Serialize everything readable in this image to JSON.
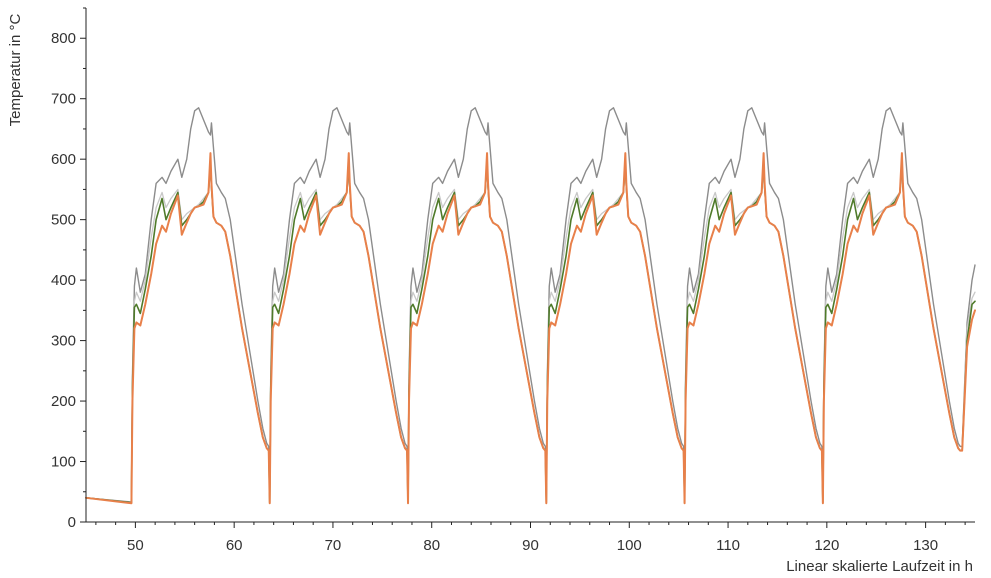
{
  "chart_data": {
    "type": "line",
    "xlabel": "Linear skalierte Laufzeit in h",
    "ylabel": "Temperatur in °C",
    "xlim": [
      45,
      135
    ],
    "ylim": [
      0,
      850
    ],
    "xticks": [
      50,
      60,
      70,
      80,
      90,
      100,
      110,
      120,
      130
    ],
    "yticks": [
      0,
      100,
      200,
      300,
      400,
      500,
      600,
      700,
      800
    ],
    "grid": false,
    "legend": "none",
    "cycle_period_h": 14,
    "series": [
      {
        "color": "#8c8c8c",
        "width": 1.4,
        "initial": [
          [
            45,
            40
          ],
          [
            49.6,
            33
          ]
        ],
        "cycle_start_h": 49.6,
        "cycle": [
          [
            0,
            33
          ],
          [
            0.1,
            240
          ],
          [
            0.3,
            390
          ],
          [
            0.5,
            420
          ],
          [
            0.9,
            380
          ],
          [
            1.4,
            410
          ],
          [
            2.0,
            500
          ],
          [
            2.5,
            560
          ],
          [
            3.1,
            570
          ],
          [
            3.5,
            560
          ],
          [
            4.0,
            580
          ],
          [
            4.7,
            600
          ],
          [
            5.1,
            570
          ],
          [
            5.6,
            600
          ],
          [
            6.0,
            650
          ],
          [
            6.4,
            680
          ],
          [
            6.8,
            685
          ],
          [
            7.3,
            665
          ],
          [
            7.8,
            645
          ],
          [
            8.0,
            640
          ],
          [
            8.1,
            660
          ],
          [
            8.3,
            620
          ],
          [
            8.6,
            560
          ],
          [
            9.1,
            545
          ],
          [
            9.5,
            535
          ],
          [
            10.0,
            500
          ],
          [
            10.6,
            430
          ],
          [
            11.2,
            360
          ],
          [
            12.0,
            280
          ],
          [
            12.8,
            200
          ],
          [
            13.3,
            155
          ],
          [
            13.7,
            130
          ],
          [
            13.9,
            125
          ]
        ],
        "final": [
          [
            133.7,
            125
          ],
          [
            134.2,
            330
          ],
          [
            134.7,
            400
          ],
          [
            135,
            425
          ]
        ]
      },
      {
        "color": "#c8c8c8",
        "width": 1.3,
        "initial": [
          [
            45,
            40
          ],
          [
            49.6,
            32
          ]
        ],
        "cycle_start_h": 49.6,
        "cycle": [
          [
            0,
            32
          ],
          [
            0.1,
            230
          ],
          [
            0.3,
            365
          ],
          [
            0.5,
            380
          ],
          [
            0.9,
            365
          ],
          [
            1.4,
            400
          ],
          [
            2.0,
            470
          ],
          [
            2.5,
            520
          ],
          [
            3.1,
            545
          ],
          [
            3.5,
            520
          ],
          [
            4.0,
            535
          ],
          [
            4.7,
            550
          ],
          [
            5.1,
            500
          ],
          [
            5.6,
            510
          ],
          [
            6.0,
            515
          ],
          [
            6.4,
            520
          ],
          [
            6.8,
            525
          ],
          [
            7.3,
            535
          ],
          [
            7.8,
            545
          ],
          [
            8.0,
            580
          ],
          [
            8.1,
            550
          ],
          [
            8.3,
            505
          ],
          [
            8.6,
            495
          ],
          [
            9.1,
            490
          ],
          [
            9.5,
            480
          ],
          [
            10.0,
            440
          ],
          [
            10.6,
            380
          ],
          [
            11.2,
            320
          ],
          [
            12.0,
            250
          ],
          [
            12.8,
            180
          ],
          [
            13.3,
            140
          ],
          [
            13.7,
            122
          ],
          [
            13.9,
            118
          ]
        ],
        "final": [
          [
            133.7,
            118
          ],
          [
            134.2,
            320
          ],
          [
            134.7,
            370
          ],
          [
            135,
            380
          ]
        ]
      },
      {
        "color": "#4f7a2a",
        "width": 1.6,
        "initial": [
          [
            45,
            40
          ],
          [
            49.6,
            32
          ]
        ],
        "cycle_start_h": 49.6,
        "cycle": [
          [
            0,
            32
          ],
          [
            0.1,
            220
          ],
          [
            0.3,
            355
          ],
          [
            0.5,
            360
          ],
          [
            0.9,
            345
          ],
          [
            1.4,
            385
          ],
          [
            2.0,
            440
          ],
          [
            2.5,
            500
          ],
          [
            3.1,
            535
          ],
          [
            3.5,
            500
          ],
          [
            4.0,
            520
          ],
          [
            4.7,
            545
          ],
          [
            5.1,
            490
          ],
          [
            5.6,
            500
          ],
          [
            6.0,
            510
          ],
          [
            6.4,
            520
          ],
          [
            6.8,
            522
          ],
          [
            7.3,
            530
          ],
          [
            7.8,
            545
          ],
          [
            8.0,
            595
          ],
          [
            8.1,
            555
          ],
          [
            8.3,
            505
          ],
          [
            8.6,
            495
          ],
          [
            9.1,
            490
          ],
          [
            9.5,
            480
          ],
          [
            10.0,
            440
          ],
          [
            10.6,
            380
          ],
          [
            11.2,
            320
          ],
          [
            12.0,
            250
          ],
          [
            12.8,
            180
          ],
          [
            13.3,
            140
          ],
          [
            13.7,
            122
          ],
          [
            13.9,
            118
          ]
        ],
        "final": [
          [
            133.7,
            118
          ],
          [
            134.2,
            300
          ],
          [
            134.7,
            360
          ],
          [
            135,
            365
          ]
        ]
      },
      {
        "color": "#e8804a",
        "width": 2.0,
        "initial": [
          [
            45,
            40
          ],
          [
            49.6,
            31
          ]
        ],
        "cycle_start_h": 49.6,
        "cycle": [
          [
            0,
            31
          ],
          [
            0.1,
            200
          ],
          [
            0.3,
            320
          ],
          [
            0.5,
            330
          ],
          [
            0.9,
            325
          ],
          [
            1.4,
            360
          ],
          [
            2.0,
            410
          ],
          [
            2.5,
            460
          ],
          [
            3.1,
            490
          ],
          [
            3.5,
            480
          ],
          [
            4.0,
            510
          ],
          [
            4.7,
            540
          ],
          [
            5.1,
            475
          ],
          [
            5.6,
            495
          ],
          [
            6.0,
            510
          ],
          [
            6.4,
            520
          ],
          [
            6.8,
            522
          ],
          [
            7.3,
            525
          ],
          [
            7.8,
            545
          ],
          [
            8.0,
            610
          ],
          [
            8.1,
            560
          ],
          [
            8.3,
            505
          ],
          [
            8.6,
            495
          ],
          [
            9.1,
            490
          ],
          [
            9.5,
            480
          ],
          [
            10.0,
            440
          ],
          [
            10.6,
            380
          ],
          [
            11.2,
            320
          ],
          [
            12.0,
            250
          ],
          [
            12.8,
            180
          ],
          [
            13.3,
            140
          ],
          [
            13.7,
            122
          ],
          [
            13.9,
            118
          ]
        ],
        "final": [
          [
            133.7,
            118
          ],
          [
            134.2,
            290
          ],
          [
            134.7,
            335
          ],
          [
            135,
            350
          ]
        ]
      }
    ]
  }
}
